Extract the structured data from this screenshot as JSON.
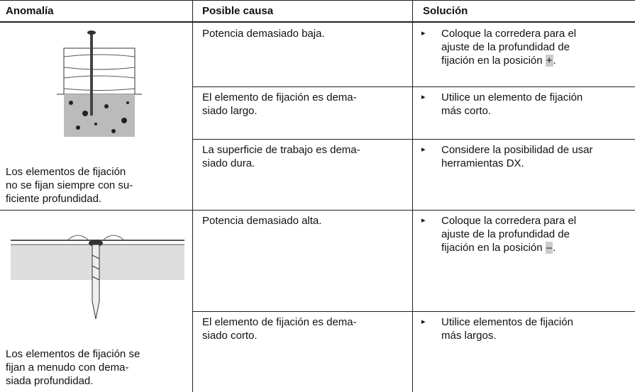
{
  "table": {
    "header": [
      "Anomalía",
      "Posible causa",
      "Solución"
    ],
    "groups": [
      {
        "anomaly": [
          "Los elementos de fijación",
          "no se fijan siempre con su-",
          "ficiente profundidad."
        ],
        "causes": [
          {
            "cause": [
              "Potencia demasiado baja."
            ],
            "solution": [
              "Coloque la corredera para el",
              "ajuste de la profundidad de",
              "fijación en la posición "
            ],
            "symbol": "+",
            "end": "."
          },
          {
            "cause": [
              "El elemento de fijación es dema-",
              "siado largo."
            ],
            "solution": [
              "Utilice un elemento de fijación",
              "más corto."
            ]
          },
          {
            "cause": [
              "La superficie de trabajo es dema-",
              "siado dura."
            ],
            "solution": [
              "Considere la posibilidad de usar",
              "herramientas DX."
            ]
          }
        ]
      },
      {
        "anomaly": [
          "Los elementos de fijación se",
          "fijan a menudo con dema-",
          "siada profundidad."
        ],
        "causes": [
          {
            "cause": [
              "Potencia demasiado alta."
            ],
            "solution": [
              "Coloque la corredera para el",
              "ajuste de la profundidad de",
              "fijación en la posición "
            ],
            "symbol": "–",
            "end": "."
          },
          {
            "cause": [
              "El elemento de fijación es dema-",
              "siado corto."
            ],
            "solution": [
              "Utilice elementos de fijación",
              "más largos."
            ]
          }
        ]
      }
    ]
  }
}
